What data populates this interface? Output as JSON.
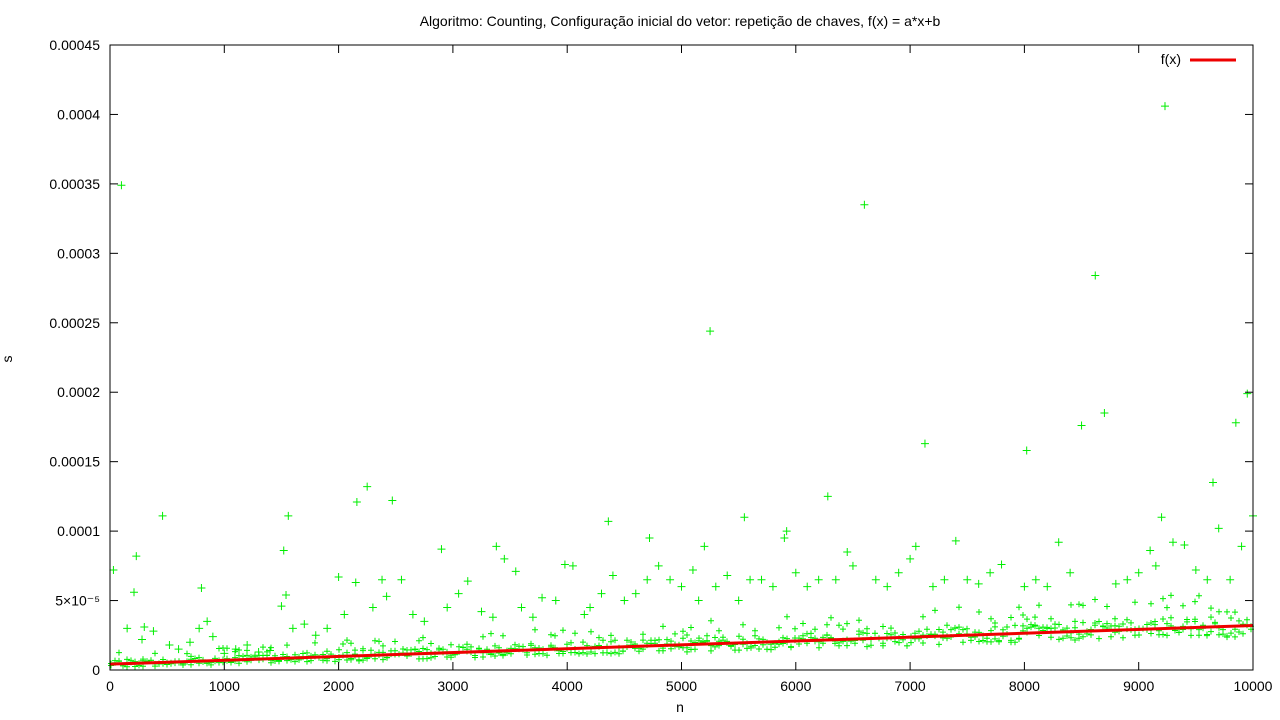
{
  "chart_data": {
    "type": "scatter",
    "title": "Algoritmo: Counting, Configuração inicial do vetor: repetição de chaves, f(x) = a*x+b",
    "xlabel": "n",
    "ylabel": "s",
    "xlim": [
      0,
      10000
    ],
    "ylim": [
      0,
      0.00045
    ],
    "x_ticks": [
      0,
      1000,
      2000,
      3000,
      4000,
      5000,
      6000,
      7000,
      8000,
      9000,
      10000
    ],
    "x_tick_labels": [
      "0",
      "1000",
      "2000",
      "3000",
      "4000",
      "5000",
      "6000",
      "7000",
      "8000",
      "9000",
      "10000"
    ],
    "y_ticks": [
      0,
      5e-05,
      0.0001,
      0.00015,
      0.0002,
      0.00025,
      0.0003,
      0.00035,
      0.0004,
      0.00045
    ],
    "y_tick_labels": [
      "0",
      "5×10⁻⁵",
      "0.0001",
      "0.00015",
      "0.0002",
      "0.00025",
      "0.0003",
      "0.00035",
      "0.0004",
      "0.00045"
    ],
    "grid": false,
    "legend_position": "top-right",
    "series": [
      {
        "name": "",
        "kind": "points",
        "marker": "+",
        "color": "#00ee00",
        "x": [
          30,
          100,
          150,
          210,
          230,
          280,
          300,
          380,
          460,
          520,
          600,
          700,
          780,
          800,
          850,
          900,
          1000,
          1100,
          1200,
          1300,
          1400,
          1500,
          1520,
          1540,
          1560,
          1600,
          1700,
          1800,
          1900,
          2000,
          2050,
          2150,
          2160,
          2250,
          2300,
          2380,
          2420,
          2470,
          2550,
          2650,
          2750,
          2900,
          2950,
          3050,
          3130,
          3250,
          3350,
          3380,
          3450,
          3550,
          3600,
          3700,
          3780,
          3900,
          3980,
          4050,
          4150,
          4200,
          4300,
          4360,
          4400,
          4500,
          4600,
          4700,
          4720,
          4800,
          4900,
          5000,
          5100,
          5150,
          5200,
          5250,
          5300,
          5400,
          5500,
          5550,
          5600,
          5700,
          5800,
          5900,
          5920,
          6000,
          6100,
          6200,
          6280,
          6350,
          6450,
          6500,
          6600,
          6700,
          6800,
          6900,
          7000,
          7050,
          7130,
          7200,
          7300,
          7400,
          7500,
          7600,
          7700,
          7800,
          8000,
          8020,
          8100,
          8200,
          8300,
          8400,
          8500,
          8620,
          8700,
          8800,
          8900,
          9000,
          9100,
          9150,
          9200,
          9230,
          9300,
          9400,
          9500,
          9600,
          9650,
          9700,
          9800,
          9850,
          9900,
          9950,
          10000
        ],
        "y": [
          7.2e-05,
          0.000349,
          3e-05,
          5.6e-05,
          8.2e-05,
          2.2e-05,
          3.1e-05,
          2.8e-05,
          0.000111,
          1.8e-05,
          1.5e-05,
          2e-05,
          3e-05,
          5.9e-05,
          3.5e-05,
          2.4e-05,
          1.2e-05,
          1.5e-05,
          1.8e-05,
          1.3e-05,
          1.4e-05,
          4.6e-05,
          8.6e-05,
          5.4e-05,
          0.000111,
          3e-05,
          3.3e-05,
          2.5e-05,
          3e-05,
          6.7e-05,
          4e-05,
          6.3e-05,
          0.000121,
          0.000132,
          4.5e-05,
          6.5e-05,
          5.3e-05,
          0.000122,
          6.5e-05,
          4e-05,
          3.5e-05,
          8.7e-05,
          4.5e-05,
          5.5e-05,
          6.4e-05,
          4.2e-05,
          3.8e-05,
          8.9e-05,
          8e-05,
          7.1e-05,
          4.5e-05,
          3.8e-05,
          5.2e-05,
          5e-05,
          7.6e-05,
          7.5e-05,
          4e-05,
          4.5e-05,
          5.5e-05,
          0.000107,
          6.8e-05,
          5e-05,
          5.5e-05,
          6.5e-05,
          9.5e-05,
          7.5e-05,
          6.5e-05,
          6e-05,
          7.2e-05,
          5e-05,
          8.9e-05,
          0.000244,
          6e-05,
          6.8e-05,
          5e-05,
          0.00011,
          6.5e-05,
          6.5e-05,
          6e-05,
          9.5e-05,
          0.0001,
          7e-05,
          6e-05,
          6.5e-05,
          0.000125,
          6.5e-05,
          8.5e-05,
          7.5e-05,
          0.000335,
          6.5e-05,
          6e-05,
          7e-05,
          8e-05,
          8.9e-05,
          0.000163,
          6e-05,
          6.5e-05,
          9.3e-05,
          6.5e-05,
          6.2e-05,
          7e-05,
          7.6e-05,
          6e-05,
          0.000158,
          6.5e-05,
          6e-05,
          9.2e-05,
          7e-05,
          0.000176,
          0.000284,
          0.000185,
          6.2e-05,
          6.5e-05,
          7e-05,
          8.6e-05,
          7.5e-05,
          0.00011,
          0.000406,
          9.2e-05,
          9e-05,
          7.2e-05,
          6.5e-05,
          0.000135,
          0.000102,
          6.5e-05,
          0.000178,
          8.9e-05,
          0.000199,
          0.000111
        ]
      },
      {
        "name": "f(x)",
        "kind": "line",
        "color": "#ee0000",
        "x": [
          0,
          10000
        ],
        "y": [
          4.2e-06,
          3.2e-05
        ]
      }
    ]
  }
}
